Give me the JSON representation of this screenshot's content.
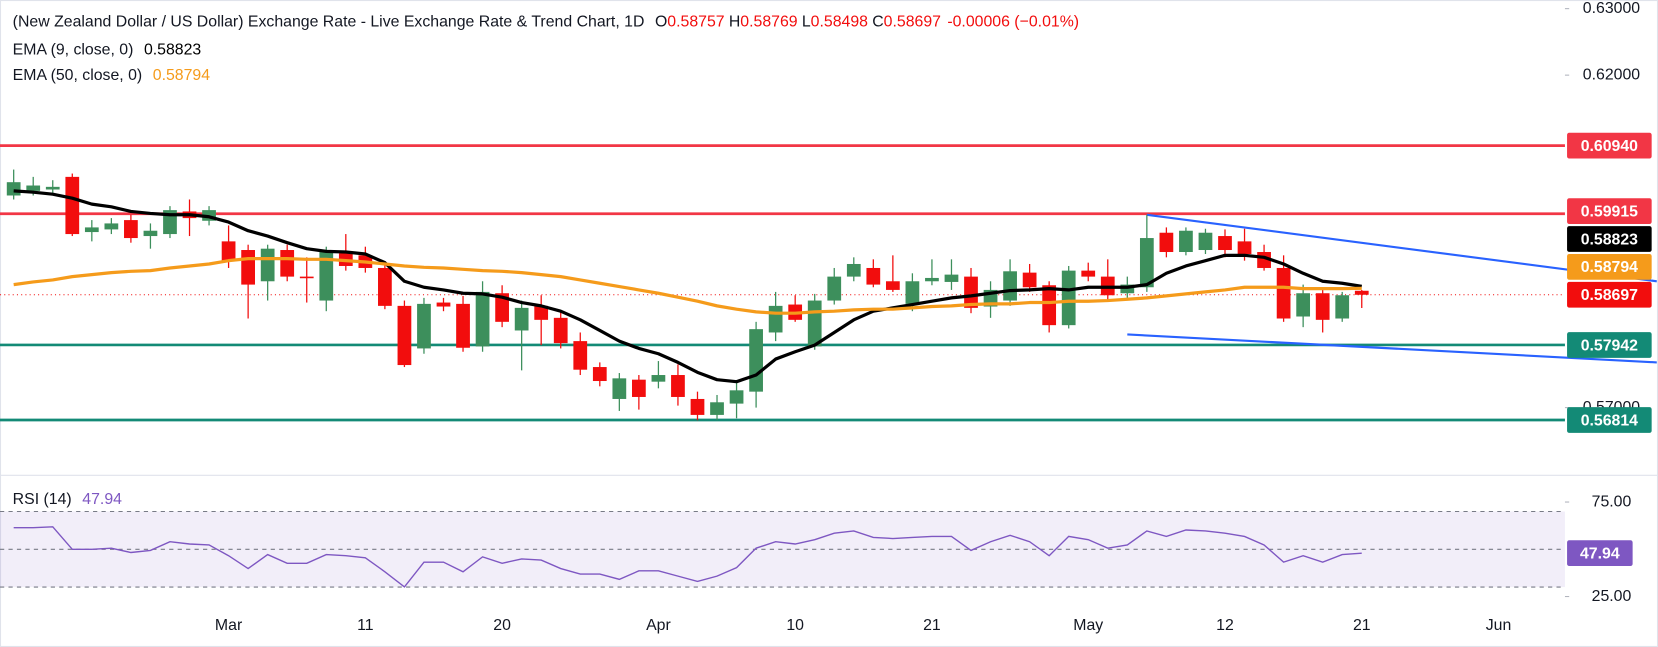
{
  "chart_data": {
    "type": "candlestick",
    "title": "(New Zealand Dollar / US Dollar) Exchange Rate - Live Exchange Rate & Trend Chart, 1D",
    "ohlc_labels": [
      "O",
      "H",
      "L",
      "C"
    ],
    "change": "-0.00006 (−0.01%)",
    "categories": [
      null,
      null,
      null,
      null,
      null,
      null,
      null,
      null,
      null,
      null,
      null,
      "Mar",
      null,
      null,
      null,
      null,
      null,
      null,
      "11",
      null,
      null,
      null,
      null,
      null,
      null,
      "20",
      null,
      null,
      null,
      null,
      null,
      null,
      null,
      "Apr",
      null,
      null,
      null,
      null,
      null,
      null,
      "10",
      null,
      null,
      null,
      null,
      null,
      null,
      "21",
      null,
      null,
      null,
      null,
      null,
      null,
      null,
      "May",
      null,
      null,
      null,
      null,
      null,
      null,
      "12",
      null,
      null,
      null,
      null,
      null,
      null,
      "21",
      null,
      null,
      null,
      null,
      null,
      null,
      "Jun"
    ],
    "open": [
      0.6019,
      0.6026,
      0.6028,
      0.6047,
      0.5964,
      0.5968,
      0.5982,
      0.5958,
      0.5961,
      0.5995,
      0.5981,
      0.595,
      0.5937,
      0.589,
      0.5937,
      0.5897,
      0.5861,
      0.5932,
      0.5929,
      0.591,
      0.5853,
      0.5789,
      0.5858,
      0.5856,
      0.5792,
      0.5872,
      0.5816,
      0.5853,
      0.5835,
      0.58,
      0.5761,
      0.5713,
      0.5742,
      0.5739,
      0.5749,
      0.5713,
      0.5689,
      0.5706,
      0.5724,
      0.5813,
      0.5855,
      0.5792,
      0.5861,
      0.5897,
      0.591,
      0.589,
      0.5856,
      0.589,
      0.5889,
      0.5897,
      0.5852,
      0.5861,
      0.5903,
      0.5884,
      0.5824,
      0.5906,
      0.5897,
      0.5872,
      0.5881,
      0.5963,
      0.5934,
      0.5937,
      0.5958,
      0.595,
      0.5934,
      0.591,
      0.5837,
      0.5872,
      0.5834,
      0.58757,
      null,
      null,
      null,
      null,
      null,
      null,
      null
    ],
    "high": [
      0.6058,
      0.6047,
      0.6042,
      0.6052,
      0.5982,
      0.5985,
      0.599,
      0.5977,
      0.6003,
      0.6013,
      0.6003,
      0.5974,
      0.5945,
      0.5945,
      0.5945,
      0.5926,
      0.5942,
      0.5961,
      0.5942,
      0.5918,
      0.5861,
      0.5865,
      0.5865,
      0.5868,
      0.589,
      0.5884,
      0.5861,
      0.5869,
      0.5845,
      0.5813,
      0.5768,
      0.5752,
      0.5749,
      0.577,
      0.5765,
      0.5724,
      0.5719,
      0.574,
      0.5829,
      0.5874,
      0.5869,
      0.5871,
      0.591,
      0.5926,
      0.5923,
      0.5929,
      0.5902,
      0.5923,
      0.5923,
      0.591,
      0.589,
      0.5923,
      0.5916,
      0.589,
      0.5913,
      0.5918,
      0.5923,
      0.5897,
      0.599,
      0.5971,
      0.5971,
      0.5969,
      0.5968,
      0.5969,
      0.5945,
      0.5929,
      0.5885,
      0.5881,
      0.5874,
      0.58769,
      null,
      null,
      null,
      null,
      null,
      null,
      null
    ],
    "low": [
      0.6013,
      0.6019,
      0.6023,
      0.5958,
      0.595,
      0.5961,
      0.5948,
      0.5939,
      0.5955,
      0.5958,
      0.5974,
      0.591,
      0.5834,
      0.5861,
      0.589,
      0.5858,
      0.5845,
      0.5906,
      0.5903,
      0.5848,
      0.5761,
      0.5781,
      0.5845,
      0.5784,
      0.5784,
      0.5821,
      0.5756,
      0.5794,
      0.5789,
      0.5749,
      0.5732,
      0.5695,
      0.5697,
      0.5729,
      0.5703,
      0.5681,
      0.5681,
      0.5684,
      0.57,
      0.58,
      0.5829,
      0.5787,
      0.5855,
      0.589,
      0.5881,
      0.5874,
      0.5845,
      0.5884,
      0.5877,
      0.5842,
      0.5835,
      0.5853,
      0.5874,
      0.5813,
      0.5819,
      0.589,
      0.5861,
      0.5865,
      0.5874,
      0.5926,
      0.5929,
      0.5931,
      0.5926,
      0.5921,
      0.5906,
      0.5829,
      0.5821,
      0.5813,
      0.5829,
      0.58498,
      null,
      null,
      null,
      null,
      null,
      null,
      null
    ],
    "close": [
      0.6039,
      0.6034,
      0.6032,
      0.5961,
      0.5971,
      0.5977,
      0.5955,
      0.5966,
      0.5997,
      0.5985,
      0.5997,
      0.5921,
      0.5885,
      0.5939,
      0.5897,
      0.5895,
      0.5934,
      0.5913,
      0.591,
      0.5853,
      0.5764,
      0.5856,
      0.5852,
      0.579,
      0.5874,
      0.5829,
      0.585,
      0.5832,
      0.5797,
      0.5757,
      0.574,
      0.5744,
      0.5716,
      0.5749,
      0.5716,
      0.5689,
      0.5708,
      0.5726,
      0.5818,
      0.5853,
      0.5832,
      0.5861,
      0.5897,
      0.5916,
      0.5885,
      0.5877,
      0.589,
      0.5895,
      0.59,
      0.585,
      0.5877,
      0.5905,
      0.5881,
      0.5824,
      0.5906,
      0.5897,
      0.5869,
      0.5885,
      0.5955,
      0.5934,
      0.5966,
      0.5963,
      0.5937,
      0.5931,
      0.591,
      0.5834,
      0.5872,
      0.5832,
      0.5869,
      0.58697,
      null,
      null,
      null,
      null,
      null,
      null,
      null
    ],
    "up_color": "#3d8f5c",
    "down_color": "#f20d0d",
    "series": [
      {
        "name": "EMA (9, close, 0)",
        "color": "#000000",
        "values": [
          0.6026,
          0.6024,
          0.6021,
          0.6015,
          0.6006,
          0.6002,
          0.5995,
          0.5992,
          0.599,
          0.599,
          0.5987,
          0.5979,
          0.5966,
          0.5958,
          0.5948,
          0.5939,
          0.5935,
          0.5934,
          0.5931,
          0.5918,
          0.589,
          0.5881,
          0.5877,
          0.5872,
          0.5871,
          0.5866,
          0.5858,
          0.5853,
          0.5845,
          0.5832,
          0.5816,
          0.58,
          0.5789,
          0.5781,
          0.5768,
          0.5753,
          0.5742,
          0.5739,
          0.5749,
          0.5773,
          0.5784,
          0.5794,
          0.5813,
          0.5832,
          0.5845,
          0.585,
          0.5855,
          0.586,
          0.5865,
          0.5868,
          0.5872,
          0.5876,
          0.5877,
          0.5879,
          0.5877,
          0.5881,
          0.5881,
          0.5881,
          0.5885,
          0.5902,
          0.5913,
          0.5921,
          0.5929,
          0.5929,
          0.5926,
          0.5916,
          0.5902,
          0.589,
          0.5887,
          0.58823,
          null,
          null,
          null,
          null,
          null,
          null,
          null
        ]
      },
      {
        "name": "EMA (50, close, 0)",
        "color": "#f59b1b",
        "values": [
          0.5885,
          0.5889,
          0.5892,
          0.5897,
          0.59,
          0.5903,
          0.5905,
          0.5906,
          0.591,
          0.5913,
          0.5916,
          0.5921,
          0.5924,
          0.5924,
          0.5924,
          0.5923,
          0.5923,
          0.5921,
          0.5919,
          0.5916,
          0.5913,
          0.5911,
          0.591,
          0.5908,
          0.5906,
          0.5905,
          0.5903,
          0.59,
          0.5897,
          0.5892,
          0.5887,
          0.5882,
          0.5877,
          0.5872,
          0.5866,
          0.586,
          0.5853,
          0.5848,
          0.5844,
          0.5842,
          0.5842,
          0.5844,
          0.5845,
          0.5847,
          0.5848,
          0.5848,
          0.585,
          0.5852,
          0.5853,
          0.5855,
          0.5856,
          0.5856,
          0.5858,
          0.5858,
          0.586,
          0.586,
          0.5861,
          0.5863,
          0.5865,
          0.5868,
          0.5871,
          0.5874,
          0.5877,
          0.5881,
          0.5881,
          0.5881,
          0.5879,
          0.5879,
          0.5879,
          0.58794,
          null,
          null,
          null,
          null,
          null,
          null,
          null
        ]
      }
    ],
    "xlim": [
      -0.7,
      79.4
    ],
    "ylim": [
      0.5603,
      0.6313
    ],
    "yticks": [
      {
        "value": 0.63,
        "label": "0.63000"
      },
      {
        "value": 0.62,
        "label": "0.62000"
      },
      {
        "value": 0.57,
        "label": "0.57000"
      }
    ],
    "levels": [
      {
        "value": 0.6094,
        "label": "0.60940",
        "color": "#f23645"
      },
      {
        "value": 0.59915,
        "label": "0.59915",
        "color": "#f23645"
      },
      {
        "value": 0.57942,
        "label": "0.57942",
        "color": "#138a76"
      },
      {
        "value": 0.56814,
        "label": "0.56814",
        "color": "#138a76"
      }
    ],
    "trendlines": [
      {
        "x": [
          58,
          84.1
        ],
        "y": [
          0.599,
          0.589
        ]
      },
      {
        "x": [
          57,
          84.1
        ],
        "y": [
          0.581,
          0.5768
        ]
      }
    ],
    "trendline_color": "#2962ff",
    "indicator": {
      "type": "line",
      "name": "RSI (14)",
      "color": "#7e57c2",
      "values": [
        61.4,
        61.4,
        61.9,
        50.0,
        50.0,
        50.6,
        48.3,
        49.4,
        54.0,
        52.8,
        52.3,
        46.6,
        39.8,
        47.2,
        42.6,
        42.6,
        47.2,
        46.6,
        45.5,
        38.1,
        30.1,
        43.2,
        43.2,
        38.1,
        46.0,
        42.6,
        44.9,
        44.3,
        39.8,
        36.9,
        36.9,
        34.1,
        38.6,
        38.6,
        35.8,
        33.0,
        35.8,
        40.3,
        50.6,
        54.0,
        52.8,
        55.1,
        58.5,
        59.7,
        56.3,
        55.7,
        56.3,
        56.8,
        56.8,
        49.4,
        54.0,
        57.4,
        54.0,
        46.6,
        56.8,
        55.1,
        50.6,
        52.3,
        59.7,
        56.8,
        60.2,
        59.7,
        58.5,
        56.8,
        52.3,
        43.2,
        46.6,
        43.2,
        47.2,
        47.94,
        null,
        null,
        null,
        null,
        null,
        null,
        null
      ],
      "ylim": [
        0,
        88
      ],
      "yticks": [
        {
          "value": 75,
          "label": "75.00"
        },
        {
          "value": 25,
          "label": "25.00"
        }
      ],
      "bands": [
        70,
        50,
        30
      ]
    }
  }
}
